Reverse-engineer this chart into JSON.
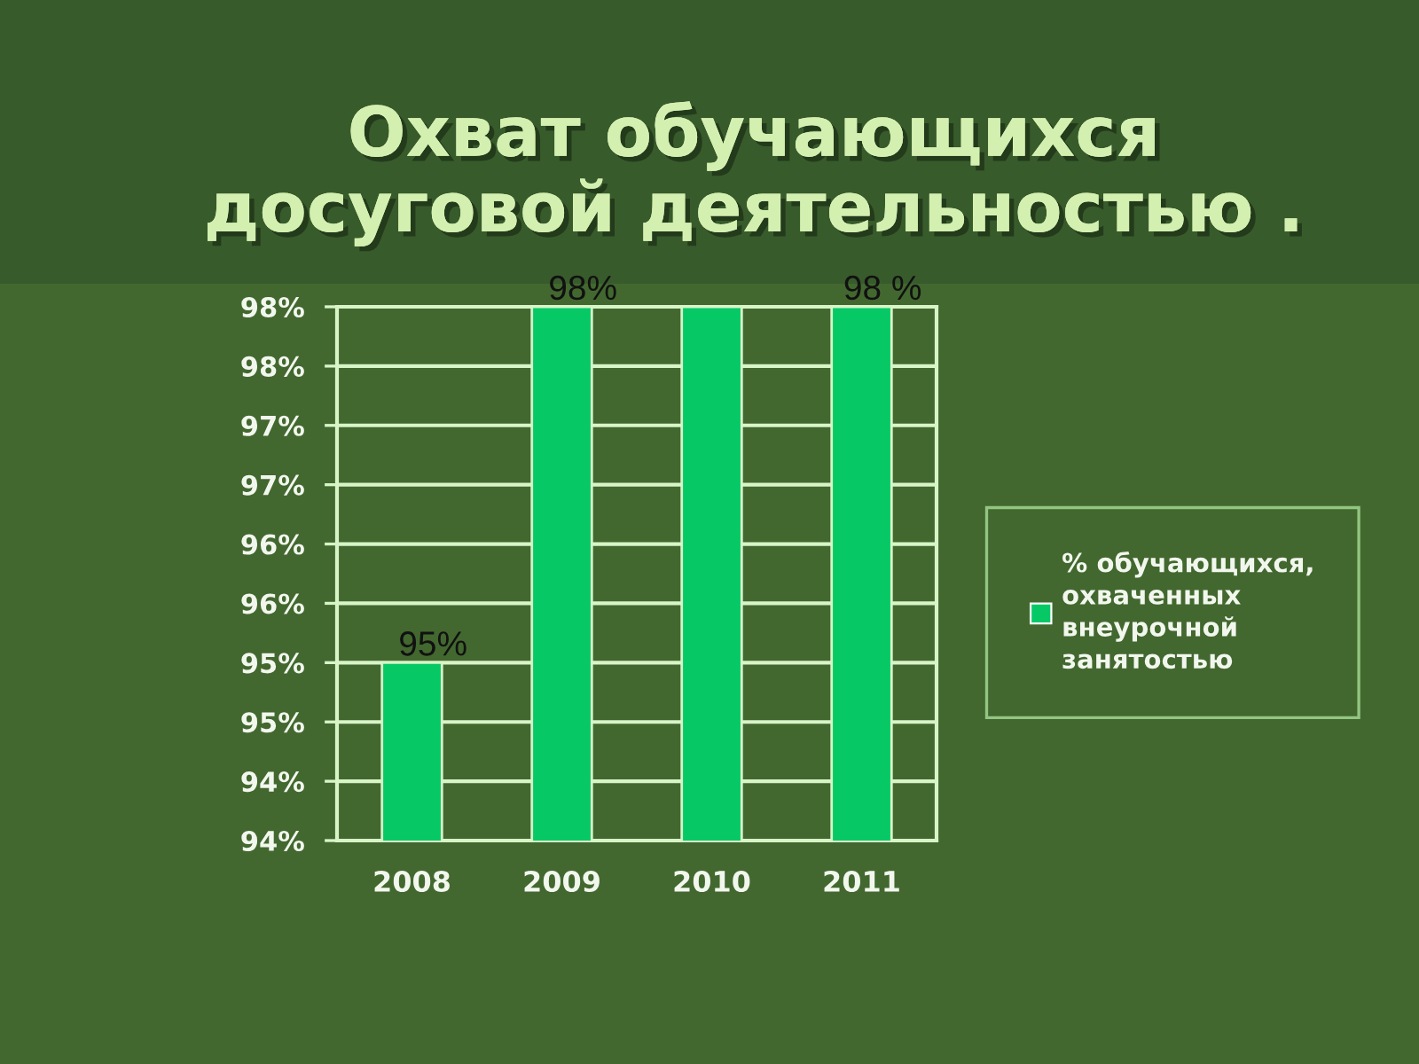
{
  "chart_data": {
    "type": "bar",
    "title": "Охват обучающихся\nдосуговой деятельностью .",
    "categories": [
      "2008",
      "2009",
      "2010",
      "2011"
    ],
    "series": [
      {
        "name": "% обучающихся,\nохваченных\nвнеурочной\nзанятостью",
        "color": "#06c966",
        "values": [
          95.25,
          98.25,
          98.25,
          98.25
        ],
        "value_labels": [
          "95%",
          "98%",
          null,
          "98 %"
        ]
      }
    ],
    "ylim": [
      93.75,
      98.25
    ],
    "yticks": [
      {
        "value": 93.75,
        "label": "94%"
      },
      {
        "value": 94.25,
        "label": "94%"
      },
      {
        "value": 94.75,
        "label": "95%"
      },
      {
        "value": 95.25,
        "label": "95%"
      },
      {
        "value": 95.75,
        "label": "96%"
      },
      {
        "value": 96.25,
        "label": "96%"
      },
      {
        "value": 96.75,
        "label": "97%"
      },
      {
        "value": 97.25,
        "label": "97%"
      },
      {
        "value": 97.75,
        "label": "98%"
      },
      {
        "value": 98.25,
        "label": "98%"
      }
    ],
    "grid": "y",
    "legend": "right"
  }
}
